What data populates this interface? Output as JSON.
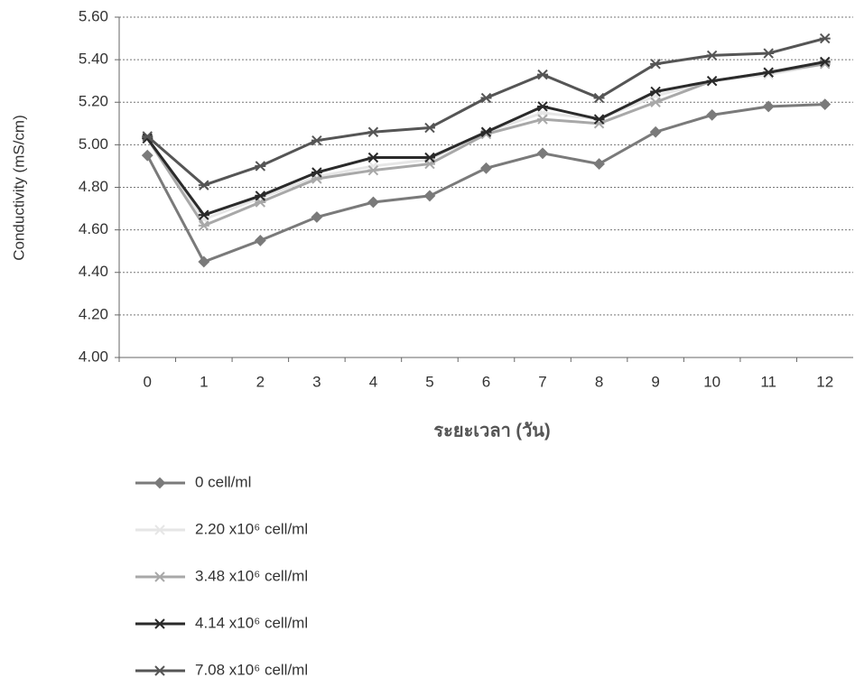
{
  "chart_data": {
    "type": "line",
    "ylabel": "Conductivity (mS/cm)",
    "xlabel": "ระยะเวลา (วัน)",
    "categories": [
      "0",
      "1",
      "2",
      "3",
      "4",
      "5",
      "6",
      "7",
      "8",
      "9",
      "10",
      "11",
      "12"
    ],
    "series": [
      {
        "name": "0 cell/ml",
        "color": "#7a7a7a",
        "marker": "diamond",
        "values": [
          4.95,
          4.45,
          4.55,
          4.66,
          4.73,
          4.76,
          4.89,
          4.96,
          4.91,
          5.06,
          5.14,
          5.18,
          5.19
        ]
      },
      {
        "name": "2.20 x10⁶ cell/ml",
        "color": "#e6e6e6",
        "marker": "star",
        "values": [
          5.03,
          4.65,
          4.75,
          4.85,
          4.9,
          4.93,
          5.06,
          5.15,
          5.12,
          5.23,
          5.3,
          5.33,
          5.38
        ]
      },
      {
        "name": "3.48 x10⁶ cell/ml",
        "color": "#a8a8a8",
        "marker": "star",
        "values": [
          5.03,
          4.62,
          4.73,
          4.84,
          4.88,
          4.91,
          5.05,
          5.12,
          5.1,
          5.2,
          5.3,
          5.34,
          5.38
        ]
      },
      {
        "name": "4.14 x10⁶ cell/ml",
        "color": "#2a2a2a",
        "marker": "star",
        "values": [
          5.03,
          4.67,
          4.76,
          4.87,
          4.94,
          4.94,
          5.06,
          5.18,
          5.12,
          5.25,
          5.3,
          5.34,
          5.39
        ]
      },
      {
        "name": "7.08 x10⁶ cell/ml",
        "color": "#555555",
        "marker": "star",
        "values": [
          5.04,
          4.81,
          4.9,
          5.02,
          5.06,
          5.08,
          5.22,
          5.33,
          5.22,
          5.38,
          5.42,
          5.43,
          5.5
        ]
      }
    ],
    "ylim": [
      4.0,
      5.6
    ],
    "yticks": [
      {
        "value": 4.0,
        "label": "4.00"
      },
      {
        "value": 4.2,
        "label": "4.20"
      },
      {
        "value": 4.4,
        "label": "4.40"
      },
      {
        "value": 4.6,
        "label": "4.60"
      },
      {
        "value": 4.8,
        "label": "4.80"
      },
      {
        "value": 5.0,
        "label": "5.00"
      },
      {
        "value": 5.2,
        "label": "5.20"
      },
      {
        "value": 5.4,
        "label": "5.40"
      },
      {
        "value": 5.6,
        "label": "5.60"
      }
    ],
    "grid": true
  }
}
